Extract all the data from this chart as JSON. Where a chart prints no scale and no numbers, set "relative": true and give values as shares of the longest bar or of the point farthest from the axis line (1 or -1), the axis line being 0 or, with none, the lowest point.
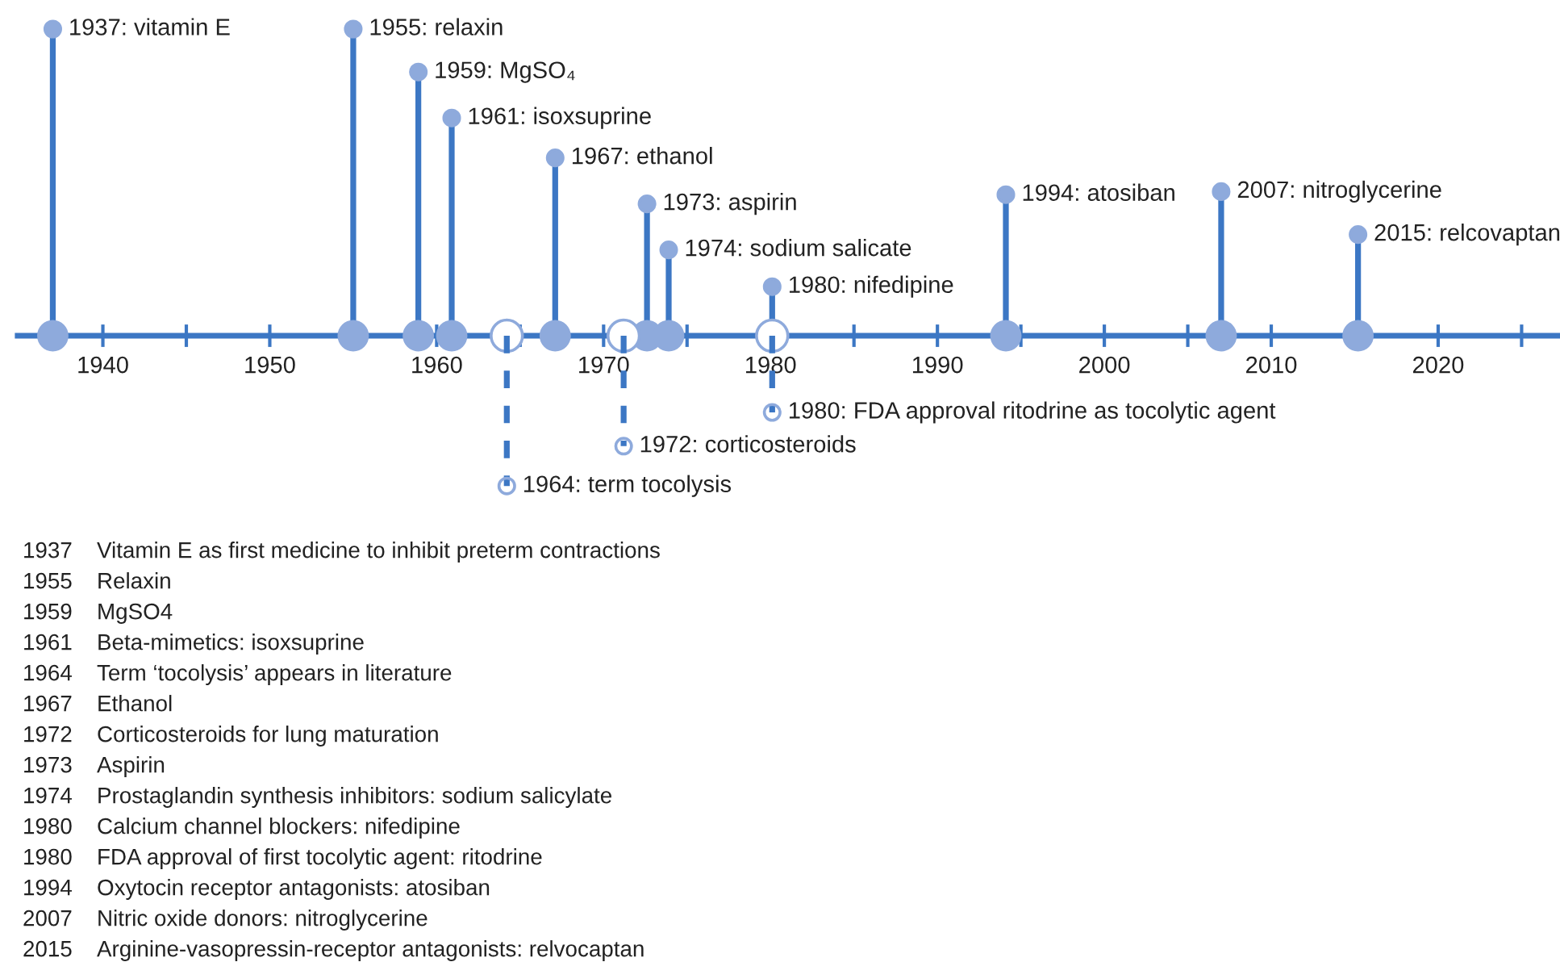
{
  "chart_data": {
    "type": "lollipop",
    "relative": true,
    "xlim": [
      1934.9,
      2027.3
    ],
    "xticks": [
      1940,
      {
        "value": 1945,
        "label": null
      },
      1950,
      {
        "value": 1955,
        "label": null
      },
      1960,
      {
        "value": 1965,
        "label": null
      },
      1970,
      {
        "value": 1975,
        "label": null
      },
      1980,
      {
        "value": 1985,
        "label": null
      },
      1990,
      {
        "value": 1995,
        "label": null
      },
      2000,
      {
        "value": 2005,
        "label": null
      },
      2010,
      {
        "value": 2015,
        "label": null
      },
      2020,
      {
        "value": 2025,
        "label": null
      }
    ],
    "marker": "circle",
    "grid": false,
    "legend": false,
    "series": [
      {
        "color": "#8eaadc",
        "line_style": "solid",
        "x": [
          1937,
          1955,
          1958.9,
          1960.9,
          1967.1,
          1972.6,
          1973.9,
          1980.1,
          1994.1,
          2007.0,
          2015.2
        ],
        "values": [
          1,
          1,
          0.86,
          0.71,
          0.58,
          0.43,
          0.28,
          0.16,
          0.46,
          0.47,
          0.33
        ]
      },
      {
        "color": "#8eaadc",
        "line_style": "dashed",
        "x": [
          1964.2,
          1971.2,
          1980.1
        ],
        "values": [
          -0.49,
          -0.36,
          -0.25
        ]
      }
    ],
    "annotations": [
      {
        "text": "1937: vitamin E",
        "x": 1937,
        "y": 1
      },
      {
        "text": "1955: relaxin",
        "x": 1955,
        "y": 1
      },
      {
        "text": "1959: MgSO₄",
        "x": 1958.9,
        "y": 0.86
      },
      {
        "text": "1961: isoxsuprine",
        "x": 1960.9,
        "y": 0.71
      },
      {
        "text": "1967: ethanol",
        "x": 1967.1,
        "y": 0.58
      },
      {
        "text": "1973: aspirin",
        "x": 1972.6,
        "y": 0.43
      },
      {
        "text": "1974: sodium salicate",
        "x": 1973.9,
        "y": 0.28
      },
      {
        "text": "1980: nifedipine",
        "x": 1980.1,
        "y": 0.16
      },
      {
        "text": "1994: atosiban",
        "x": 1994.1,
        "y": 0.46
      },
      {
        "text": "2007: nitroglycerine",
        "x": 2007.0,
        "y": 0.47
      },
      {
        "text": "2015: relcovaptan",
        "x": 2015.2,
        "y": 0.33
      },
      {
        "text": "1964: term tocolysis",
        "x": 1964.2,
        "y": -0.49
      },
      {
        "text": "1972: corticosteroids",
        "x": 1971.2,
        "y": -0.36
      },
      {
        "text": "1980: FDA approval ritodrine as tocolytic agent",
        "x": 1980.1,
        "y": -0.25
      },
      "1937 Vitamin E as first medicine to inhibit preterm contractions",
      "1955 Relaxin",
      "1959 MgSO4",
      "1961 Beta-mimetics: isoxsuprine",
      "1964 Term ‘tocolysis’ appears in literature",
      "1967 Ethanol",
      "1972 Corticosteroids for lung maturation",
      "1973 Aspirin",
      "1974 Prostaglandin synthesis inhibitors: sodium salicylate",
      "1980 Calcium channel blockers: nifedipine",
      "1980 FDA approval of first tocolytic agent: ritodrine",
      "1994 Oxytocin receptor antagonists: atosiban",
      "2007 Nitric oxide donors: nitroglycerine",
      "2015 Arginine-vasopressin-receptor antagonists: relvocaptan"
    ]
  }
}
